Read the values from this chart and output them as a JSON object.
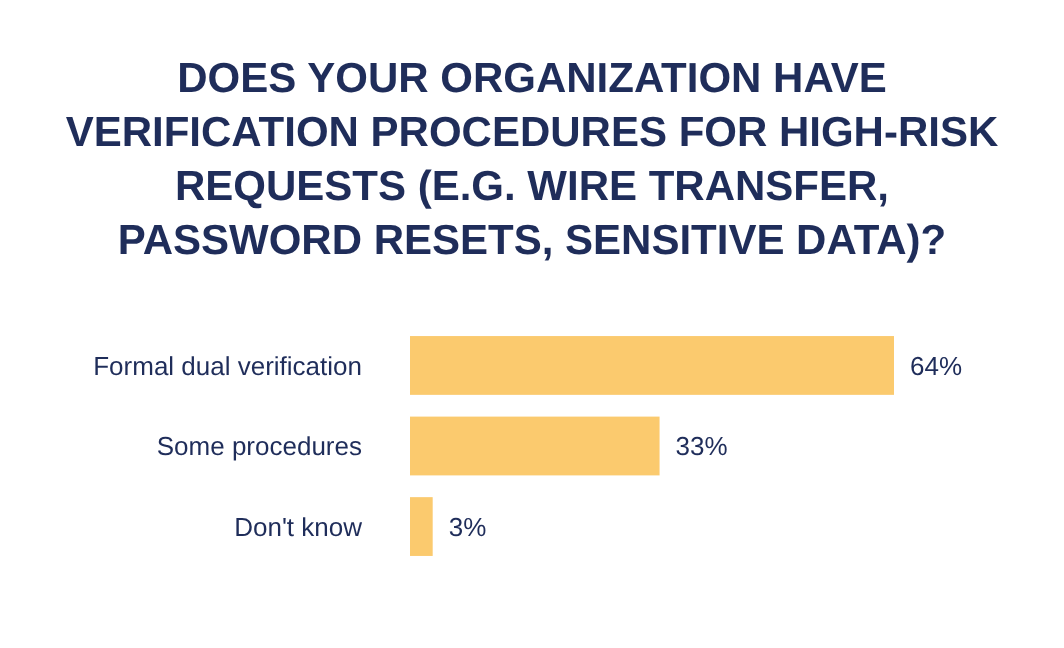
{
  "chart_data": {
    "type": "bar",
    "orientation": "horizontal",
    "title": "DOES YOUR ORGANIZATION HAVE VERIFICATION PROCEDURES FOR HIGH-RISK REQUESTS (E.G. WIRE TRANSFER, PASSWORD RESETS, SENSITIVE DATA)?",
    "categories": [
      "Formal dual verification",
      "Some procedures",
      "Don't know"
    ],
    "values": [
      64,
      33,
      3
    ],
    "value_labels": [
      "64%",
      "33%",
      "3%"
    ],
    "color": "#fbca6e"
  }
}
